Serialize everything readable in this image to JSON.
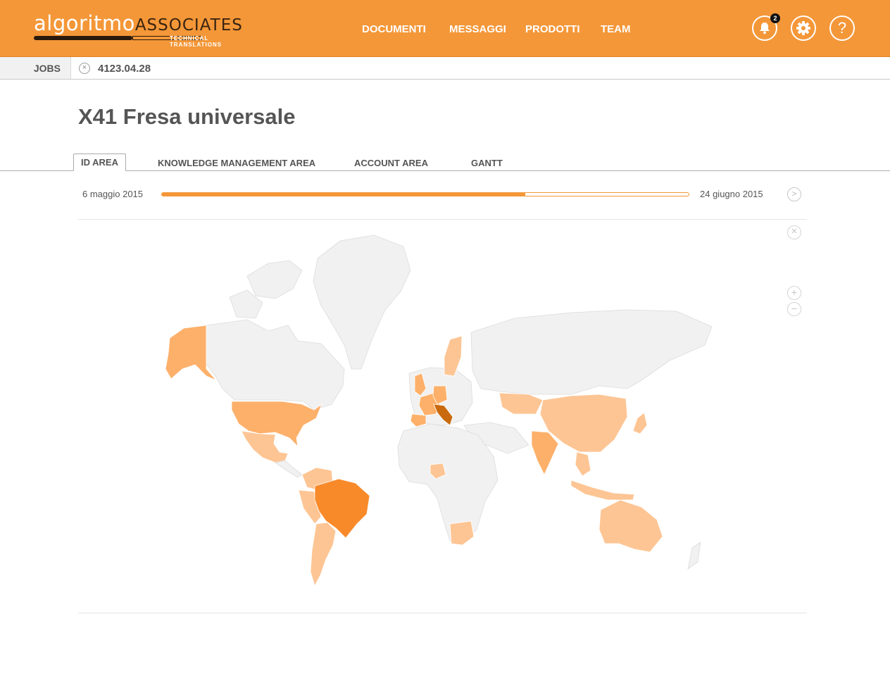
{
  "brand": {
    "lower": "algoritmo",
    "upper": "ASSOCIATES",
    "tagline": "TECHNICAL TRANSLATIONS"
  },
  "nav": {
    "items": [
      {
        "label": "DOCUMENTI"
      },
      {
        "label": "MESSAGGI"
      },
      {
        "label": "PRODOTTI"
      },
      {
        "label": "TEAM"
      }
    ]
  },
  "header_actions": {
    "notifications_count": "2",
    "notifications_icon": "bell-icon",
    "settings_icon": "gear-icon",
    "help_symbol": "?"
  },
  "breadcrumb": {
    "root": "JOBS",
    "job_code": "4123.04.28"
  },
  "page": {
    "title": "X41 Fresa universale"
  },
  "tabs": [
    {
      "label": "ID AREA",
      "active": true
    },
    {
      "label": "KNOWLEDGE MANAGEMENT AREA",
      "active": false
    },
    {
      "label": "ACCOUNT AREA",
      "active": false
    },
    {
      "label": "GANTT",
      "active": false
    }
  ],
  "timeline": {
    "start_date": "6 maggio 2015",
    "end_date": "24 giugno 2015",
    "progress": 0.69
  },
  "map": {
    "controls": {
      "zoom_in": "+",
      "zoom_out": "−"
    },
    "colors": {
      "none": "#f1f1f1",
      "light": "#fdc594",
      "medium": "#fdb06a",
      "strong": "#f88a2a",
      "top": "#c96a0e",
      "border": "#dcdcdc"
    },
    "highlighted_countries": [
      {
        "name": "Italy",
        "level": "top"
      },
      {
        "name": "Brazil",
        "level": "strong"
      },
      {
        "name": "United States",
        "level": "medium"
      },
      {
        "name": "France",
        "level": "medium"
      },
      {
        "name": "Germany",
        "level": "medium"
      },
      {
        "name": "India",
        "level": "medium"
      },
      {
        "name": "United Kingdom",
        "level": "medium"
      },
      {
        "name": "Spain",
        "level": "medium"
      },
      {
        "name": "Canada (Alaska)",
        "level": "medium"
      },
      {
        "name": "China",
        "level": "light"
      },
      {
        "name": "Kazakhstan",
        "level": "light"
      },
      {
        "name": "Mexico",
        "level": "light"
      },
      {
        "name": "Australia",
        "level": "light"
      },
      {
        "name": "Argentina",
        "level": "light"
      },
      {
        "name": "Japan",
        "level": "light"
      },
      {
        "name": "Indonesia",
        "level": "light"
      },
      {
        "name": "South Africa",
        "level": "light"
      },
      {
        "name": "Sweden",
        "level": "light"
      },
      {
        "name": "Nigeria",
        "level": "light"
      },
      {
        "name": "Peru",
        "level": "light"
      },
      {
        "name": "Colombia",
        "level": "light"
      }
    ]
  }
}
